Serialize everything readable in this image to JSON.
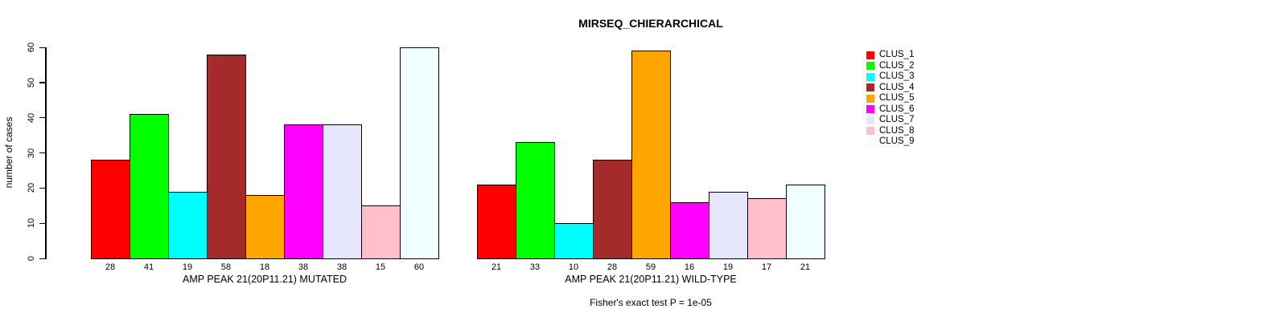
{
  "title": "MIRSEQ_CHIERARCHICAL",
  "footer": "Fisher's exact test P = 1e-05",
  "y_axis": {
    "label": "number of cases",
    "ticks": [
      0,
      10,
      20,
      30,
      40,
      50,
      60
    ],
    "max": 60
  },
  "legend": {
    "position": "right",
    "items": [
      {
        "label": "CLUS_1",
        "color": "#FF0000"
      },
      {
        "label": "CLUS_2",
        "color": "#00FF00"
      },
      {
        "label": "CLUS_3",
        "color": "#00FFFF"
      },
      {
        "label": "CLUS_4",
        "color": "#A52A2A"
      },
      {
        "label": "CLUS_5",
        "color": "#FFA500"
      },
      {
        "label": "CLUS_6",
        "color": "#FF00FF"
      },
      {
        "label": "CLUS_7",
        "color": "#E6E6FA"
      },
      {
        "label": "CLUS_8",
        "color": "#FFC0CB"
      },
      {
        "label": "CLUS_9",
        "color": "#F0FFFF"
      }
    ]
  },
  "chart_data": [
    {
      "type": "bar",
      "title": "MIRSEQ_CHIERARCHICAL",
      "xlabel": "AMP PEAK 21(20P11.21) MUTATED",
      "ylabel": "number of cases",
      "categories": [
        "CLUS_1",
        "CLUS_2",
        "CLUS_3",
        "CLUS_4",
        "CLUS_5",
        "CLUS_6",
        "CLUS_7",
        "CLUS_8",
        "CLUS_9"
      ],
      "values": [
        28,
        41,
        19,
        58,
        18,
        38,
        38,
        15,
        60
      ],
      "bar_colors": [
        "#FF0000",
        "#00FF00",
        "#00FFFF",
        "#A52A2A",
        "#FFA500",
        "#FF00FF",
        "#E6E6FA",
        "#FFC0CB",
        "#F0FFFF"
      ],
      "ylim": [
        0,
        60
      ],
      "yticks": [
        0,
        10,
        20,
        30,
        40,
        50,
        60
      ],
      "grid": false,
      "legend_position": "right"
    },
    {
      "type": "bar",
      "title": "MIRSEQ_CHIERARCHICAL",
      "xlabel": "AMP PEAK 21(20P11.21) WILD-TYPE",
      "ylabel": "number of cases",
      "categories": [
        "CLUS_1",
        "CLUS_2",
        "CLUS_3",
        "CLUS_4",
        "CLUS_5",
        "CLUS_6",
        "CLUS_7",
        "CLUS_8",
        "CLUS_9"
      ],
      "values": [
        21,
        33,
        10,
        28,
        59,
        16,
        19,
        17,
        21
      ],
      "bar_colors": [
        "#FF0000",
        "#00FF00",
        "#00FFFF",
        "#A52A2A",
        "#FFA500",
        "#FF00FF",
        "#E6E6FA",
        "#FFC0CB",
        "#F0FFFF"
      ],
      "ylim": [
        0,
        60
      ],
      "yticks": [
        0,
        10,
        20,
        30,
        40,
        50,
        60
      ],
      "grid": false,
      "legend_position": "right"
    }
  ]
}
